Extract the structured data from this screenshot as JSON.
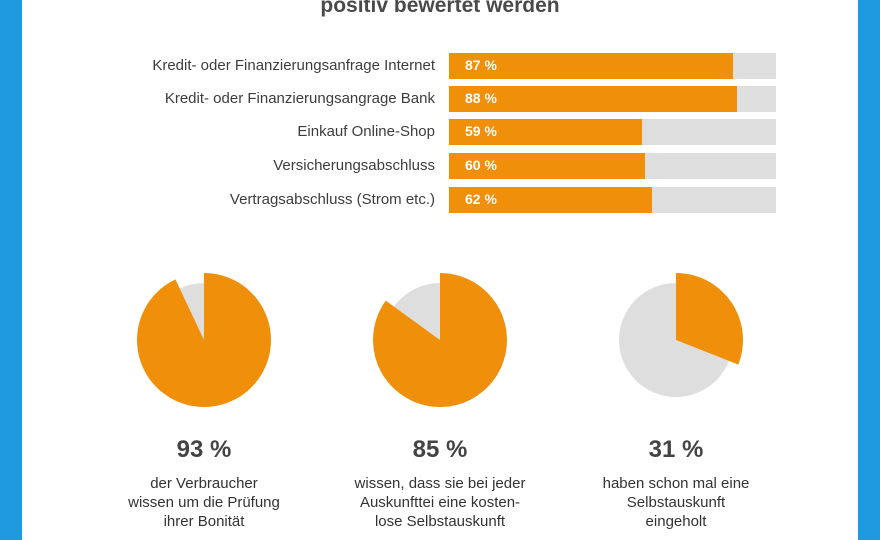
{
  "headline": "positiv bewertet werden",
  "colors": {
    "accent": "#f0900a",
    "track": "#dedede",
    "frame": "#1e9be0"
  },
  "chart_data": [
    {
      "type": "bar",
      "orientation": "horizontal",
      "categories": [
        "Kredit- oder Finanzierungsanfrage Internet",
        "Kredit- oder Finanzierungsangrage Bank",
        "Einkauf Online-Shop",
        "Versicherungsabschluss",
        "Vertragsabschluss (Strom etc.)"
      ],
      "values": [
        87,
        88,
        59,
        60,
        62
      ],
      "value_labels": [
        "87 %",
        "88 %",
        "59 %",
        "60 %",
        "62 %"
      ],
      "xlim": [
        0,
        100
      ]
    },
    {
      "type": "pie",
      "value": 93,
      "value_label": "93 %",
      "description": [
        "der Verbraucher",
        "wissen um die Prüfung",
        "ihrer Bonität"
      ]
    },
    {
      "type": "pie",
      "value": 85,
      "value_label": "85 %",
      "description": [
        "wissen, dass sie bei jeder",
        "Auskunfttei eine kosten-",
        "lose Selbstauskunft"
      ]
    },
    {
      "type": "pie",
      "value": 31,
      "value_label": "31 %",
      "description": [
        "haben schon mal eine",
        "Selbstauskunft",
        "eingeholt"
      ]
    }
  ]
}
